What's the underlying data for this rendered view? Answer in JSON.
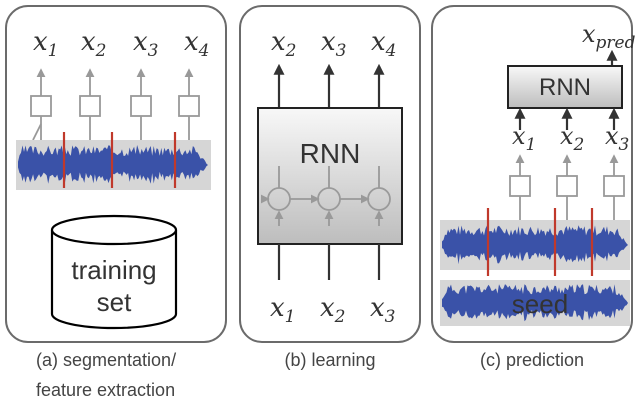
{
  "panel_a": {
    "features": [
      {
        "var": "x",
        "sub": "1"
      },
      {
        "var": "x",
        "sub": "2"
      },
      {
        "var": "x",
        "sub": "3"
      },
      {
        "var": "x",
        "sub": "4"
      }
    ],
    "db_line1": "training",
    "db_line2": "set",
    "caption_line1": "(a) segmentation/",
    "caption_line2": "feature extraction"
  },
  "panel_b": {
    "outputs": [
      {
        "var": "x",
        "sub": "2"
      },
      {
        "var": "x",
        "sub": "3"
      },
      {
        "var": "x",
        "sub": "4"
      }
    ],
    "inputs": [
      {
        "var": "x",
        "sub": "1"
      },
      {
        "var": "x",
        "sub": "2"
      },
      {
        "var": "x",
        "sub": "3"
      }
    ],
    "rnn_label": "RNN",
    "caption": "(b) learning"
  },
  "panel_c": {
    "prediction": {
      "var": "x",
      "sub": "pred"
    },
    "rnn_label": "RNN",
    "inputs": [
      {
        "var": "x",
        "sub": "1"
      },
      {
        "var": "x",
        "sub": "2"
      },
      {
        "var": "x",
        "sub": "3"
      }
    ],
    "seed_label": "seed",
    "caption": "(c) prediction"
  },
  "colors": {
    "panel_border": "#6b6b6b",
    "waveform": "#3a52a8",
    "segment_divider": "#c0392b",
    "arrow_dark": "#333333",
    "arrow_light": "#999999"
  }
}
